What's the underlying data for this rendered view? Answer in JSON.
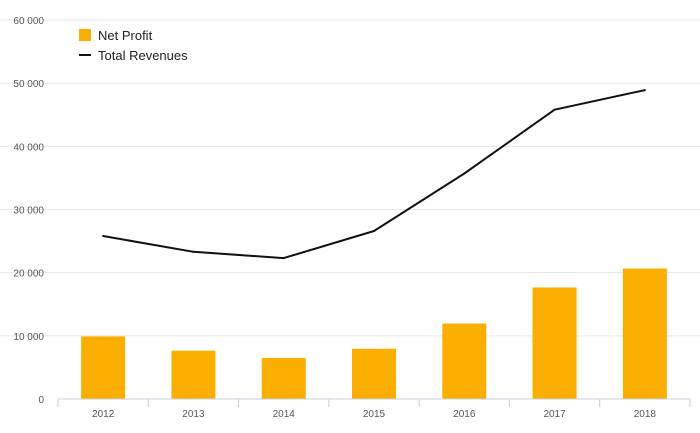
{
  "chart_data": {
    "type": "bar",
    "categories": [
      "2012",
      "2013",
      "2014",
      "2015",
      "2016",
      "2017",
      "2018"
    ],
    "series": [
      {
        "name": "Net Profit",
        "kind": "bar",
        "color": "#F9AE00",
        "values": [
          9900,
          7650,
          6500,
          7950,
          11950,
          17650,
          20650
        ]
      },
      {
        "name": "Total Revenues",
        "kind": "line",
        "color": "#111111",
        "values": [
          25800,
          23300,
          22300,
          26600,
          35700,
          45800,
          48900
        ]
      }
    ],
    "ylim": [
      0,
      60000
    ],
    "yticks": [
      0,
      10000,
      20000,
      30000,
      40000,
      50000,
      60000
    ],
    "ytick_labels": [
      "0",
      "10 000",
      "20 000",
      "30 000",
      "40 000",
      "50 000",
      "60 000"
    ],
    "title": "",
    "xlabel": "",
    "ylabel": "",
    "grid": true,
    "legend_position": "top-left"
  }
}
